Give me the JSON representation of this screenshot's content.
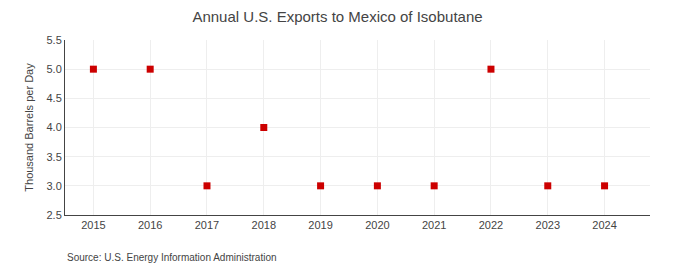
{
  "chart_data": {
    "type": "scatter",
    "title": "Annual U.S. Exports to Mexico of Isobutane",
    "ylabel": "Thousand Barrels per Day",
    "annotations": [
      "Source: U.S. Energy Information Administration"
    ],
    "x": [
      2015,
      2016,
      2017,
      2018,
      2019,
      2020,
      2021,
      2022,
      2023,
      2024
    ],
    "values": [
      5.0,
      5.0,
      3.0,
      4.0,
      3.0,
      3.0,
      3.0,
      5.0,
      3.0,
      3.0
    ],
    "color": "#cc0000",
    "marker": "square",
    "xlim": [
      2014.5,
      2024.8
    ],
    "xticks": [
      2015,
      2016,
      2017,
      2018,
      2019,
      2020,
      2021,
      2022,
      2023,
      2024
    ],
    "ylim": [
      2.5,
      5.5
    ],
    "yticks": [
      2.5,
      {
        "value": 3.0,
        "label": "3.0"
      },
      3.5,
      {
        "value": 4.0,
        "label": "4.0"
      },
      4.5,
      {
        "value": 5.0,
        "label": "5.0"
      },
      5.5
    ],
    "grid": true
  }
}
